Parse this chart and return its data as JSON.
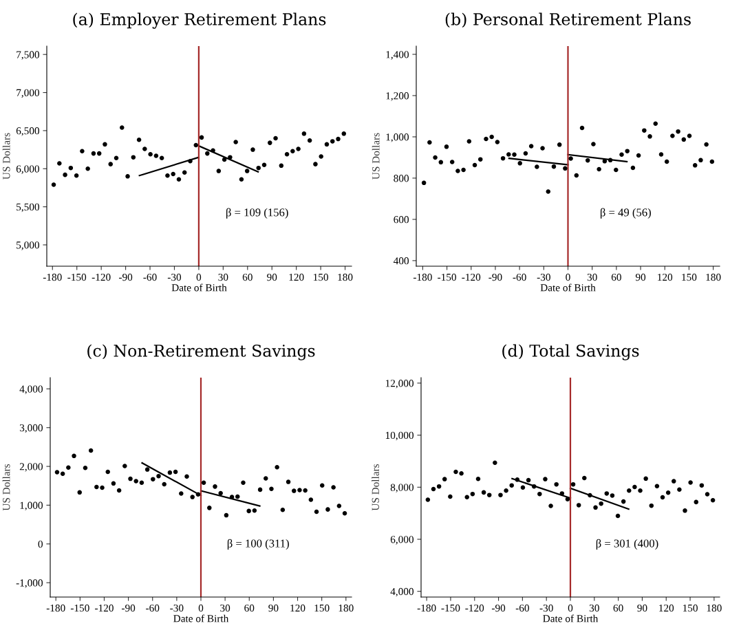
{
  "chart_data": [
    {
      "type": "scatter",
      "title": "(a) Employer Retirement Plans",
      "xlabel": "Date of Birth",
      "ylabel": "US Dollars",
      "x": [
        -178.5,
        -171.5,
        -164.5,
        -157.5,
        -150.5,
        -143.5,
        -136.5,
        -129.5,
        -122.5,
        -115.5,
        -108.5,
        -101.5,
        -94.5,
        -87.5,
        -80.5,
        -73.5,
        -66.5,
        -59.5,
        -52.5,
        -45.5,
        -38.5,
        -31.5,
        -24.5,
        -17.5,
        -10.5,
        -3.5,
        3.5,
        10.5,
        17.5,
        24.5,
        31.5,
        38.5,
        45.5,
        52.5,
        59.5,
        66.5,
        73.5,
        80.5,
        87.5,
        94.5,
        101.5,
        108.5,
        115.5,
        122.5,
        129.5,
        136.5,
        143.5,
        150.5,
        157.5,
        164.5,
        171.5,
        178.5
      ],
      "series": [
        {
          "marker": "circle",
          "color": "#000000",
          "values": [
            5790,
            6070,
            5920,
            6010,
            5910,
            6230,
            6000,
            6200,
            6200,
            6320,
            6060,
            6140,
            6540,
            5900,
            6150,
            6380,
            6260,
            6190,
            6170,
            6140,
            5910,
            5930,
            5860,
            5950,
            6100,
            6310,
            6410,
            6200,
            6240,
            5970,
            6120,
            6150,
            6350,
            5860,
            5970,
            6250,
            6010,
            6050,
            6340,
            6400,
            6040,
            6190,
            6230,
            6260,
            6460,
            6370,
            6060,
            6160,
            6320,
            6360,
            6390,
            6460
          ]
        },
        {
          "type": "line",
          "color": "#000000",
          "x": [
            -73,
            0
          ],
          "values": [
            5910,
            6150
          ]
        },
        {
          "type": "line",
          "color": "#000000",
          "x": [
            0,
            73
          ],
          "values": [
            6300,
            5960
          ]
        }
      ],
      "xlim": [
        -187,
        188
      ],
      "xticks": [
        -180,
        -150,
        -120,
        -90,
        -60,
        -30,
        0,
        30,
        60,
        90,
        120,
        150,
        180
      ],
      "ylim": [
        4720,
        7610
      ],
      "yticks": [
        {
          "value": 5000,
          "label": "5,000"
        },
        {
          "value": 5500,
          "label": "5,500"
        },
        {
          "value": 6000,
          "label": "6,000"
        },
        {
          "value": 6500,
          "label": "6,500"
        },
        {
          "value": 7000,
          "label": "7,000"
        },
        {
          "value": 7500,
          "label": "7,500"
        }
      ],
      "ref_lines": [
        {
          "axis": "x",
          "value": 0,
          "color": "#a52a2a"
        }
      ],
      "annotations": [
        "β = 109 (156)"
      ],
      "grid": false,
      "legend": false
    },
    {
      "type": "scatter",
      "title": "(b) Personal Retirement Plans",
      "xlabel": "Date of Birth",
      "ylabel": "US Dollars",
      "x": [
        -178.5,
        -171.5,
        -164.5,
        -157.5,
        -150.5,
        -143.5,
        -136.5,
        -129.5,
        -122.5,
        -115.5,
        -108.5,
        -101.5,
        -94.5,
        -87.5,
        -80.5,
        -73.5,
        -66.5,
        -59.5,
        -52.5,
        -45.5,
        -38.5,
        -31.5,
        -24.5,
        -17.5,
        -10.5,
        -3.5,
        3.5,
        10.5,
        17.5,
        24.5,
        31.5,
        38.5,
        45.5,
        52.5,
        59.5,
        66.5,
        73.5,
        80.5,
        87.5,
        94.5,
        101.5,
        108.5,
        115.5,
        122.5,
        129.5,
        136.5,
        143.5,
        150.5,
        157.5,
        164.5,
        171.5,
        178.5
      ],
      "series": [
        {
          "marker": "circle",
          "color": "#000000",
          "values": [
            777,
            973,
            900,
            877,
            952,
            878,
            835,
            840,
            978,
            863,
            891,
            990,
            1000,
            975,
            896,
            915,
            914,
            872,
            920,
            955,
            855,
            945,
            735,
            856,
            962,
            847,
            895,
            813,
            1043,
            886,
            965,
            843,
            882,
            887,
            840,
            914,
            931,
            850,
            910,
            1031,
            1002,
            1064,
            915,
            880,
            1005,
            1026,
            987,
            1005,
            862,
            887,
            963,
            880
          ]
        },
        {
          "type": "line",
          "color": "#000000",
          "x": [
            -73,
            0
          ],
          "values": [
            896,
            865
          ]
        },
        {
          "type": "line",
          "color": "#000000",
          "x": [
            0,
            73
          ],
          "values": [
            914,
            880
          ]
        }
      ],
      "xlim": [
        -188,
        188
      ],
      "xticks": [
        -180,
        -150,
        -120,
        -90,
        -60,
        -30,
        0,
        30,
        60,
        90,
        120,
        150,
        180
      ],
      "ylim": [
        373,
        1440
      ],
      "yticks": [
        400,
        600,
        800,
        {
          "value": 1000,
          "label": "1,000"
        },
        {
          "value": 1200,
          "label": "1,200"
        },
        {
          "value": 1400,
          "label": "1,400"
        }
      ],
      "ref_lines": [
        {
          "axis": "x",
          "value": 0,
          "color": "#a52a2a"
        }
      ],
      "annotations": [
        "β = 49 (56)"
      ],
      "grid": false,
      "legend": false
    },
    {
      "type": "scatter",
      "title": "(c) Non-Retirement Savings",
      "xlabel": "Date of Birth",
      "ylabel": "US Dollars",
      "x": [
        -178.5,
        -171.5,
        -164.5,
        -157.5,
        -150.5,
        -143.5,
        -136.5,
        -129.5,
        -122.5,
        -115.5,
        -108.5,
        -101.5,
        -94.5,
        -87.5,
        -80.5,
        -73.5,
        -66.5,
        -59.5,
        -52.5,
        -45.5,
        -38.5,
        -31.5,
        -24.5,
        -17.5,
        -10.5,
        -3.5,
        3.5,
        10.5,
        17.5,
        24.5,
        31.5,
        38.5,
        45.5,
        52.5,
        59.5,
        66.5,
        73.5,
        80.5,
        87.5,
        94.5,
        101.5,
        108.5,
        115.5,
        122.5,
        129.5,
        136.5,
        143.5,
        150.5,
        157.5,
        164.5,
        171.5,
        178.5
      ],
      "series": [
        {
          "marker": "circle",
          "color": "#000000",
          "values": [
            1850,
            1810,
            1970,
            2270,
            1330,
            1960,
            2410,
            1470,
            1450,
            1860,
            1560,
            1380,
            2010,
            1680,
            1620,
            1580,
            1920,
            1670,
            1750,
            1540,
            1840,
            1860,
            1300,
            1740,
            1210,
            1280,
            1580,
            930,
            1480,
            1310,
            740,
            1210,
            1220,
            1580,
            850,
            860,
            1400,
            1690,
            1420,
            1980,
            880,
            1600,
            1370,
            1390,
            1380,
            1140,
            830,
            1510,
            890,
            1460,
            980,
            790
          ]
        },
        {
          "type": "line",
          "color": "#000000",
          "x": [
            -73,
            0
          ],
          "values": [
            2090,
            1250
          ]
        },
        {
          "type": "line",
          "color": "#000000",
          "x": [
            0,
            73
          ],
          "values": [
            1370,
            980
          ]
        }
      ],
      "xlim": [
        -187,
        187
      ],
      "xticks": [
        -180,
        -150,
        -120,
        -90,
        -60,
        -30,
        0,
        30,
        60,
        90,
        120,
        150,
        180
      ],
      "ylim": [
        -1370,
        4290
      ],
      "yticks": [
        {
          "value": -1000,
          "label": "-1,000"
        },
        0,
        {
          "value": 1000,
          "label": "1,000"
        },
        {
          "value": 2000,
          "label": "2,000"
        },
        {
          "value": 3000,
          "label": "3,000"
        },
        {
          "value": 4000,
          "label": "4,000"
        }
      ],
      "ref_lines": [
        {
          "axis": "x",
          "value": 0,
          "color": "#a52a2a"
        }
      ],
      "annotations": [
        "β = 100 (311)"
      ],
      "grid": false,
      "legend": false
    },
    {
      "type": "scatter",
      "title": "(d) Total Savings",
      "xlabel": "Date of Birth",
      "ylabel": "US Dollars",
      "x": [
        -178.5,
        -171.5,
        -164.5,
        -157.5,
        -150.5,
        -143.5,
        -136.5,
        -129.5,
        -122.5,
        -115.5,
        -108.5,
        -101.5,
        -94.5,
        -87.5,
        -80.5,
        -73.5,
        -66.5,
        -59.5,
        -52.5,
        -45.5,
        -38.5,
        -31.5,
        -24.5,
        -17.5,
        -10.5,
        -3.5,
        3.5,
        10.5,
        17.5,
        24.5,
        31.5,
        38.5,
        45.5,
        52.5,
        59.5,
        66.5,
        73.5,
        80.5,
        87.5,
        94.5,
        101.5,
        108.5,
        115.5,
        122.5,
        129.5,
        136.5,
        143.5,
        150.5,
        157.5,
        164.5,
        171.5,
        178.5
      ],
      "series": [
        {
          "marker": "circle",
          "color": "#000000",
          "values": [
            7520,
            7930,
            8030,
            8310,
            7640,
            8590,
            8530,
            7620,
            7740,
            8320,
            7800,
            7700,
            8940,
            7700,
            7870,
            8070,
            8290,
            7990,
            8270,
            8030,
            7740,
            8310,
            7280,
            8110,
            7760,
            7540,
            8110,
            7310,
            8350,
            7690,
            7220,
            7370,
            7760,
            7680,
            6900,
            7450,
            7870,
            8010,
            7870,
            8330,
            7290,
            8040,
            7610,
            7790,
            8230,
            7910,
            7100,
            8180,
            7430,
            8070,
            7730,
            7500
          ]
        },
        {
          "type": "line",
          "color": "#000000",
          "x": [
            -73,
            0
          ],
          "values": [
            8330,
            7580
          ]
        },
        {
          "type": "line",
          "color": "#000000",
          "x": [
            0,
            73
          ],
          "values": [
            7960,
            7160
          ]
        }
      ],
      "xlim": [
        -187,
        187
      ],
      "xticks": [
        -180,
        -150,
        -120,
        -90,
        -60,
        -30,
        0,
        30,
        60,
        90,
        120,
        150,
        180
      ],
      "ylim": [
        3780,
        12210
      ],
      "yticks": [
        {
          "value": 4000,
          "label": "4,000"
        },
        {
          "value": 6000,
          "label": "6,000"
        },
        {
          "value": 8000,
          "label": "8,000"
        },
        {
          "value": 10000,
          "label": "10,000"
        },
        {
          "value": 12000,
          "label": "12,000"
        }
      ],
      "ref_lines": [
        {
          "axis": "x",
          "value": 0,
          "color": "#a52a2a"
        }
      ],
      "annotations": [
        "β = 301 (400)"
      ],
      "grid": false,
      "legend": false
    }
  ]
}
